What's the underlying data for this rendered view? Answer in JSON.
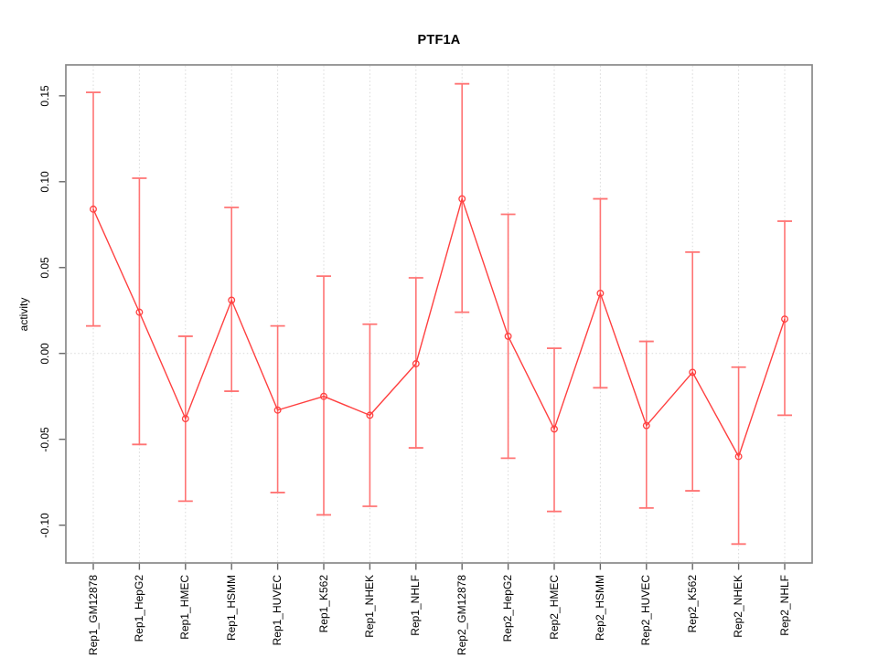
{
  "chart_data": {
    "type": "line",
    "title": "PTF1A",
    "xlabel": "",
    "ylabel": "activity",
    "categories": [
      "Rep1_GM12878",
      "Rep1_HepG2",
      "Rep1_HMEC",
      "Rep1_HSMM",
      "Rep1_HUVEC",
      "Rep1_K562",
      "Rep1_NHEK",
      "Rep1_NHLF",
      "Rep2_GM12878",
      "Rep2_HepG2",
      "Rep2_HMEC",
      "Rep2_HSMM",
      "Rep2_HUVEC",
      "Rep2_K562",
      "Rep2_NHEK",
      "Rep2_NHLF"
    ],
    "series": [
      {
        "name": "activity",
        "values": [
          0.084,
          0.024,
          -0.038,
          0.031,
          -0.033,
          -0.025,
          -0.036,
          -0.006,
          0.09,
          0.01,
          -0.044,
          0.035,
          -0.042,
          -0.011,
          -0.06,
          0.02
        ],
        "error_low": [
          0.016,
          -0.053,
          -0.086,
          -0.022,
          -0.081,
          -0.094,
          -0.089,
          -0.055,
          0.024,
          -0.061,
          -0.092,
          -0.02,
          -0.09,
          -0.08,
          -0.111,
          -0.036
        ],
        "error_high": [
          0.152,
          0.102,
          0.01,
          0.085,
          0.016,
          0.045,
          0.017,
          0.044,
          0.157,
          0.081,
          0.003,
          0.09,
          0.007,
          0.059,
          -0.008,
          0.077
        ]
      }
    ],
    "ylim": [
      -0.122,
      0.168
    ],
    "yticks": [
      -0.1,
      -0.05,
      0.0,
      0.05,
      0.1,
      0.15
    ],
    "ytick_labels": [
      "-0.10",
      "-0.05",
      "0.00",
      "0.05",
      "0.10",
      "0.15"
    ],
    "legend": "none",
    "grid": {
      "vertical_dotted_per_category": true,
      "horizontal_dotted_at_zero": true
    },
    "colors": {
      "line": "#ff4040",
      "point_stroke": "#ff4040",
      "error_bar": "#ff7474",
      "grid": "#d9d9d9",
      "frame": "#898989",
      "tick": "#666666",
      "text": "#000000",
      "background": "#ffffff"
    }
  }
}
